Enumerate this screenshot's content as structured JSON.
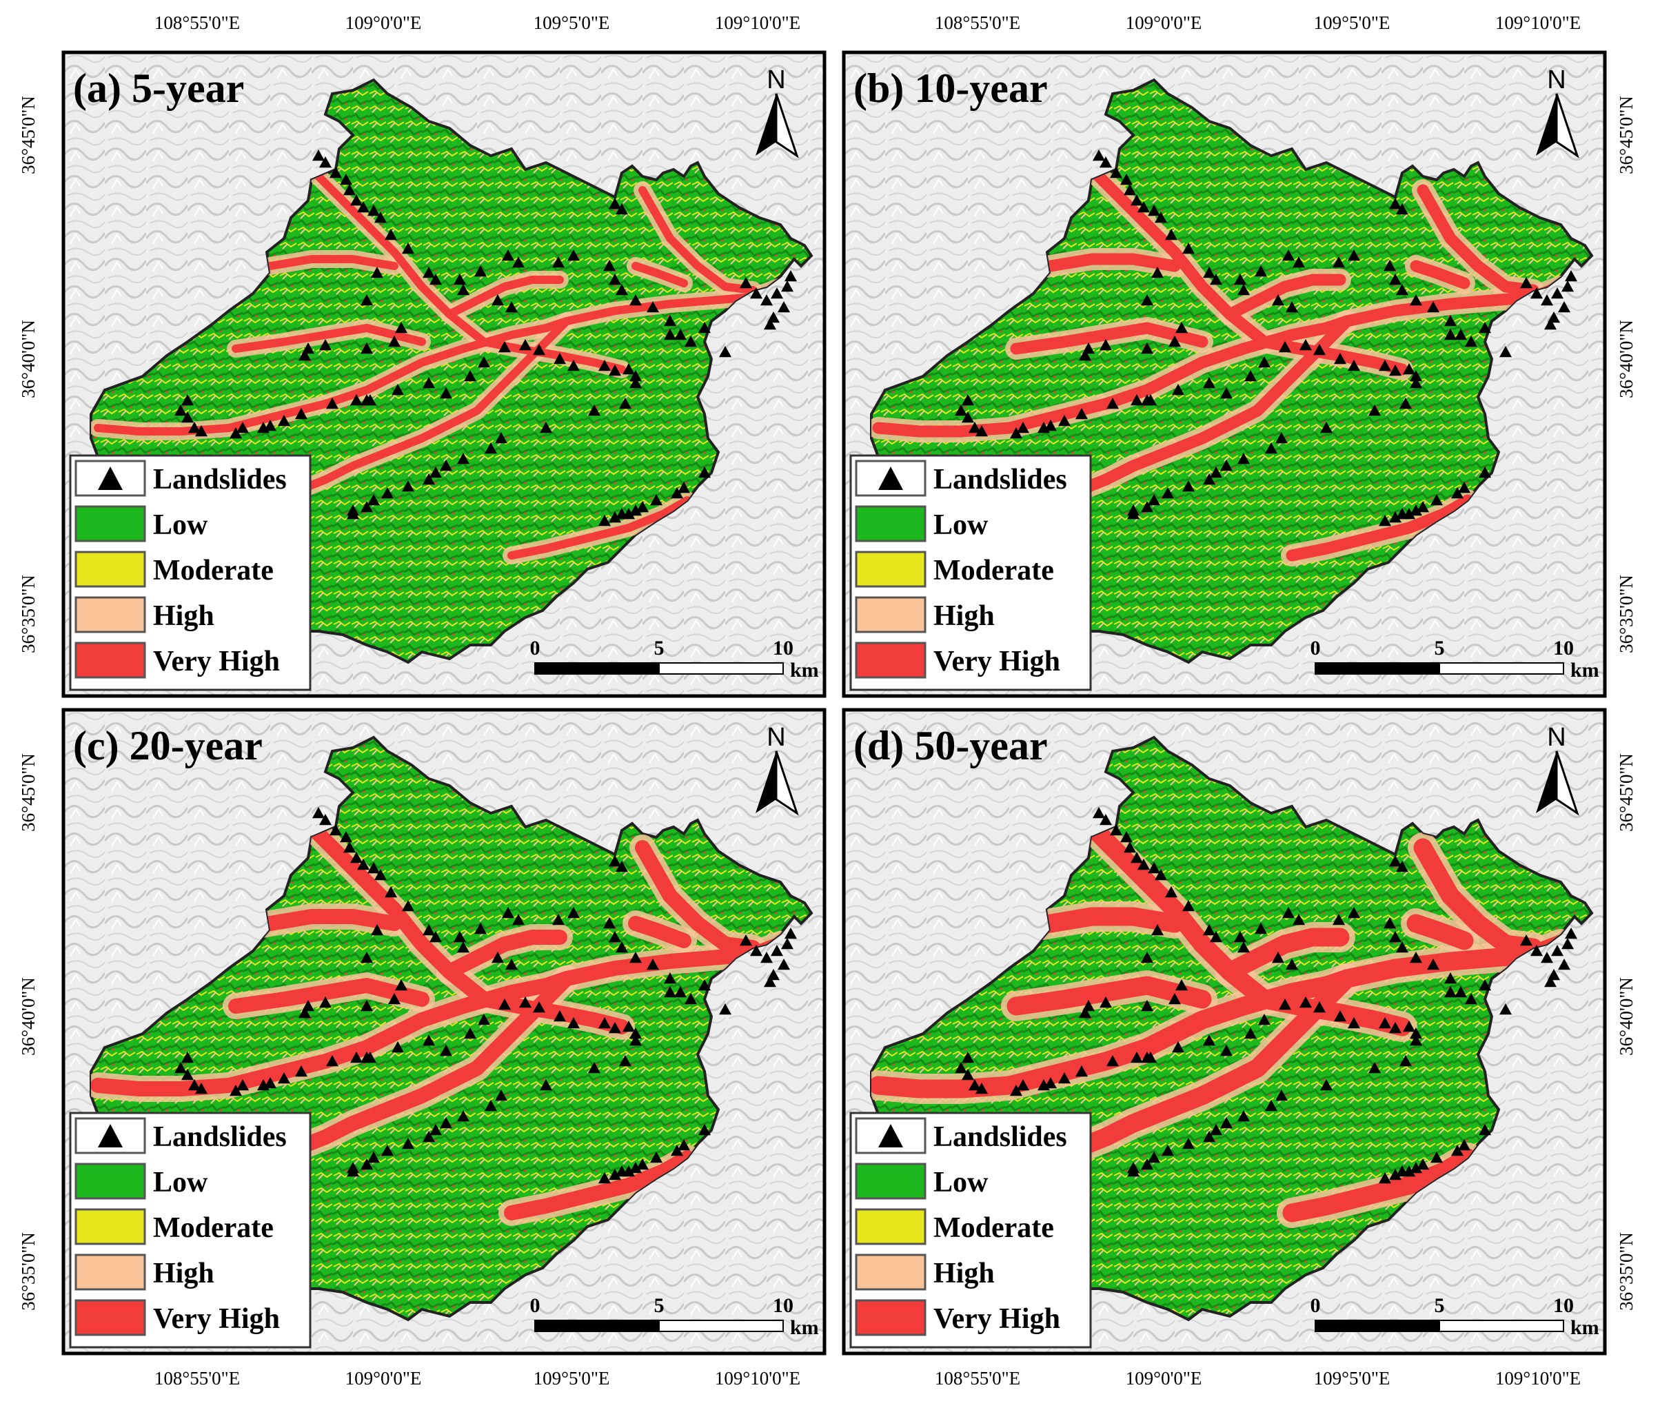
{
  "axis_labels": {
    "lon_ticks": [
      "108°55'0\"E",
      "109°0'0\"E",
      "109°5'0\"E",
      "109°10'0\"E"
    ],
    "lat_ticks": [
      "36°45'0\"N",
      "36°40'0\"N",
      "36°35'0\"N"
    ]
  },
  "panels": [
    {
      "label": "(a) 5-year",
      "severity": 0
    },
    {
      "label": "(b) 10-year",
      "severity": 1
    },
    {
      "label": "(c) 20-year",
      "severity": 2
    },
    {
      "label": "(d) 50-year",
      "severity": 3
    }
  ],
  "legend": {
    "items": [
      {
        "label": "Landslides",
        "symbol": "triangle"
      },
      {
        "label": "Low",
        "color": "#1db81d"
      },
      {
        "label": "Moderate",
        "color": "#e6e61c"
      },
      {
        "label": "High",
        "color": "#f9c39a"
      },
      {
        "label": "Very High",
        "color": "#f23b3b"
      }
    ]
  },
  "scale_bar": {
    "labels": [
      "0",
      "5",
      "10"
    ],
    "unit": "km"
  },
  "north_arrow": {
    "label": "N"
  },
  "colors": {
    "low": "#1db81d",
    "low_dark": "#168a16",
    "moderate": "#e6e61c",
    "high": "#f9c39a",
    "very_high": "#f23b3b",
    "hillshade": "#e8e8e8",
    "border": "#222222"
  }
}
